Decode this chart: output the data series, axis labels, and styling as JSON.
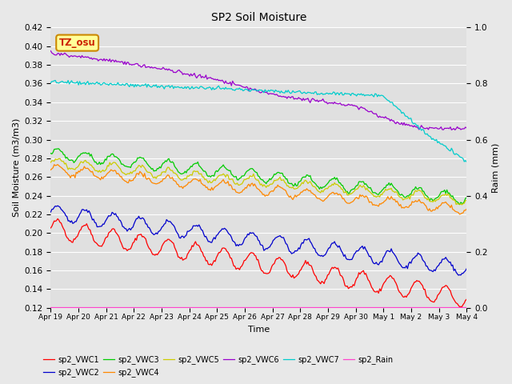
{
  "title": "SP2 Soil Moisture",
  "ylabel_left": "Soil Moisture (m3/m3)",
  "ylabel_right": "Raim (mm)",
  "xlabel": "Time",
  "ylim_left": [
    0.12,
    0.42
  ],
  "ylim_right": [
    0.0,
    1.0
  ],
  "xtick_labels": [
    "Apr 19",
    "Apr 20",
    "Apr 21",
    "Apr 22",
    "Apr 23",
    "Apr 24",
    "Apr 25",
    "Apr 26",
    "Apr 27",
    "Apr 28",
    "Apr 29",
    "Apr 30",
    "May 1",
    "May 2",
    "May 3",
    "May 4"
  ],
  "series_colors": {
    "sp2_VWC1": "#ff0000",
    "sp2_VWC2": "#0000cc",
    "sp2_VWC3": "#00cc00",
    "sp2_VWC4": "#ff8800",
    "sp2_VWC5": "#cccc00",
    "sp2_VWC6": "#9900cc",
    "sp2_VWC7": "#00cccc",
    "sp2_Rain": "#ff44cc"
  },
  "background_color": "#e0e0e0",
  "fig_bg": "#e8e8e8",
  "annotation_text": "TZ_osu",
  "annotation_color": "#cc2200",
  "annotation_bg": "#ffff99",
  "annotation_border": "#cc8800"
}
